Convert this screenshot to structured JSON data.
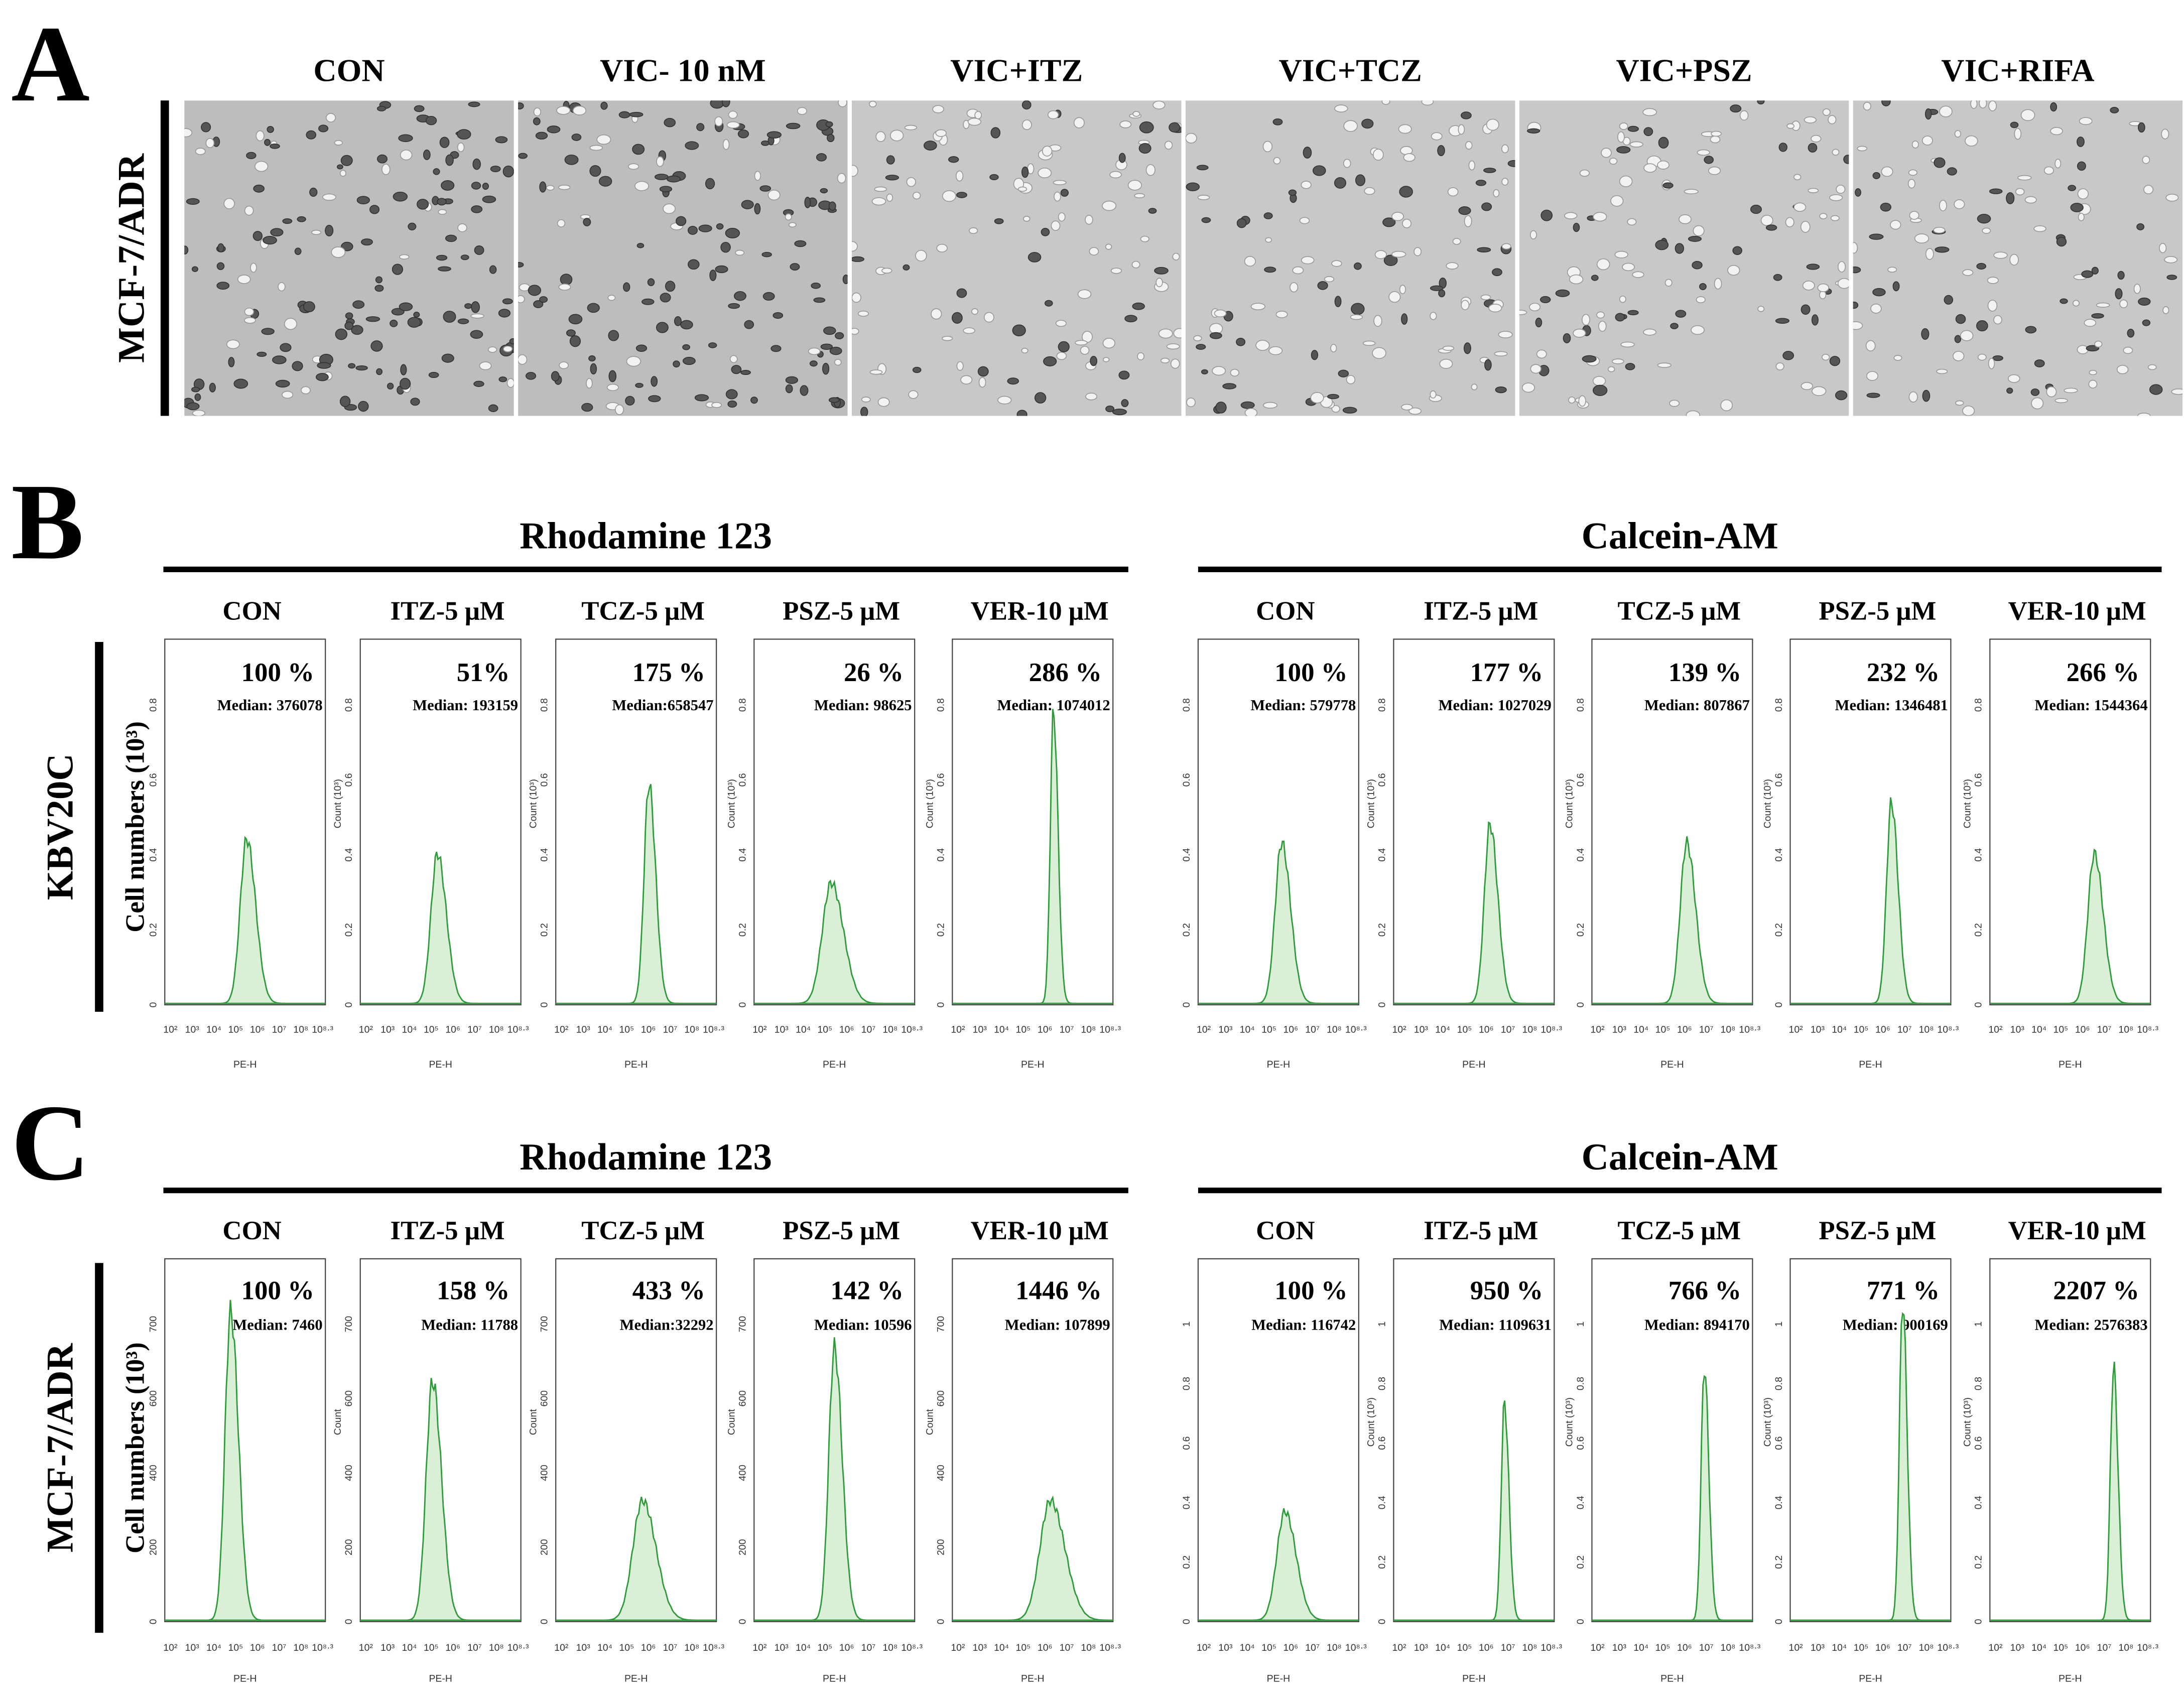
{
  "panel_a": {
    "label": "A",
    "row_label": "MCF-7/ADR",
    "conditions": [
      "CON",
      "VIC- 10 nM",
      "VIC+ITZ",
      "VIC+TCZ",
      "VIC+PSZ",
      "VIC+RIFA"
    ]
  },
  "panel_b": {
    "label": "B",
    "row_label": "KBV20C",
    "y_label": "Cell numbers  (10³)",
    "x_ticks": [
      "10²",
      "10³",
      "10⁴",
      "10⁵",
      "10⁶",
      "10⁷",
      "10⁸",
      "10⁸·³"
    ],
    "x_label": "PE-H",
    "groups": [
      {
        "title": "Rhodamine 123",
        "count_label": "Count (10³)",
        "y_ticks": [
          "0",
          "0.2",
          "0.4",
          "0.6",
          "0.8"
        ],
        "plots": [
          {
            "condition": "CON",
            "percent": "100 %",
            "median": "Median: 376078"
          },
          {
            "condition": "ITZ-5  μM",
            "percent": "51%",
            "median": "Median: 193159"
          },
          {
            "condition": "TCZ-5  μM",
            "percent": "175 %",
            "median": "Median:658547"
          },
          {
            "condition": "PSZ-5  μM",
            "percent": "26 %",
            "median": "Median: 98625"
          },
          {
            "condition": "VER-10  μM",
            "percent": "286 %",
            "median": "Median: 1074012"
          }
        ]
      },
      {
        "title": "Calcein-AM",
        "count_label": "Count (10³)",
        "y_ticks": [
          "0",
          "0.2",
          "0.4",
          "0.6",
          "0.8"
        ],
        "plots": [
          {
            "condition": "CON",
            "percent": "100 %",
            "median": "Median: 579778"
          },
          {
            "condition": "ITZ-5  μM",
            "percent": "177 %",
            "median": "Median: 1027029"
          },
          {
            "condition": "TCZ-5  μM",
            "percent": "139 %",
            "median": "Median: 807867"
          },
          {
            "condition": "PSZ-5  μM",
            "percent": "232 %",
            "median": "Median: 1346481"
          },
          {
            "condition": "VER-10  μM",
            "percent": "266 %",
            "median": "Median: 1544364"
          }
        ]
      }
    ]
  },
  "panel_c": {
    "label": "C",
    "row_label": "MCF-7/ADR",
    "y_label": "Cell numbers  (10³)",
    "x_ticks": [
      "10²",
      "10³",
      "10⁴",
      "10⁵",
      "10⁶",
      "10⁷",
      "10⁸",
      "10⁸·³"
    ],
    "x_label": "PE-H",
    "groups": [
      {
        "title": "Rhodamine 123",
        "count_label": "Count",
        "y_ticks": [
          "0",
          "200",
          "400",
          "600",
          "700"
        ],
        "plots": [
          {
            "condition": "CON",
            "percent": "100 %",
            "median": "Median: 7460"
          },
          {
            "condition": "ITZ-5  μM",
            "percent": "158 %",
            "median": "Median: 11788"
          },
          {
            "condition": "TCZ-5  μM",
            "percent": "433 %",
            "median": "Median:32292"
          },
          {
            "condition": "PSZ-5  μM",
            "percent": "142 %",
            "median": "Median: 10596"
          },
          {
            "condition": "VER-10  μM",
            "percent": "1446 %",
            "median": "Median: 107899"
          }
        ]
      },
      {
        "title": "Calcein-AM",
        "count_label": "Count (10³)",
        "y_ticks": [
          "0",
          "0.2",
          "0.4",
          "0.6",
          "0.8",
          "1"
        ],
        "plots": [
          {
            "condition": "CON",
            "percent": "100 %",
            "median": "Median: 116742"
          },
          {
            "condition": "ITZ-5  μM",
            "percent": "950 %",
            "median": "Median: 1109631"
          },
          {
            "condition": "TCZ-5  μM",
            "percent": "766 %",
            "median": "Median: 894170"
          },
          {
            "condition": "PSZ-5  μM",
            "percent": "771 %",
            "median": "Median: 900169"
          },
          {
            "condition": "VER-10  μM",
            "percent": "2207 %",
            "median": "Median: 2576383"
          }
        ]
      }
    ]
  }
}
